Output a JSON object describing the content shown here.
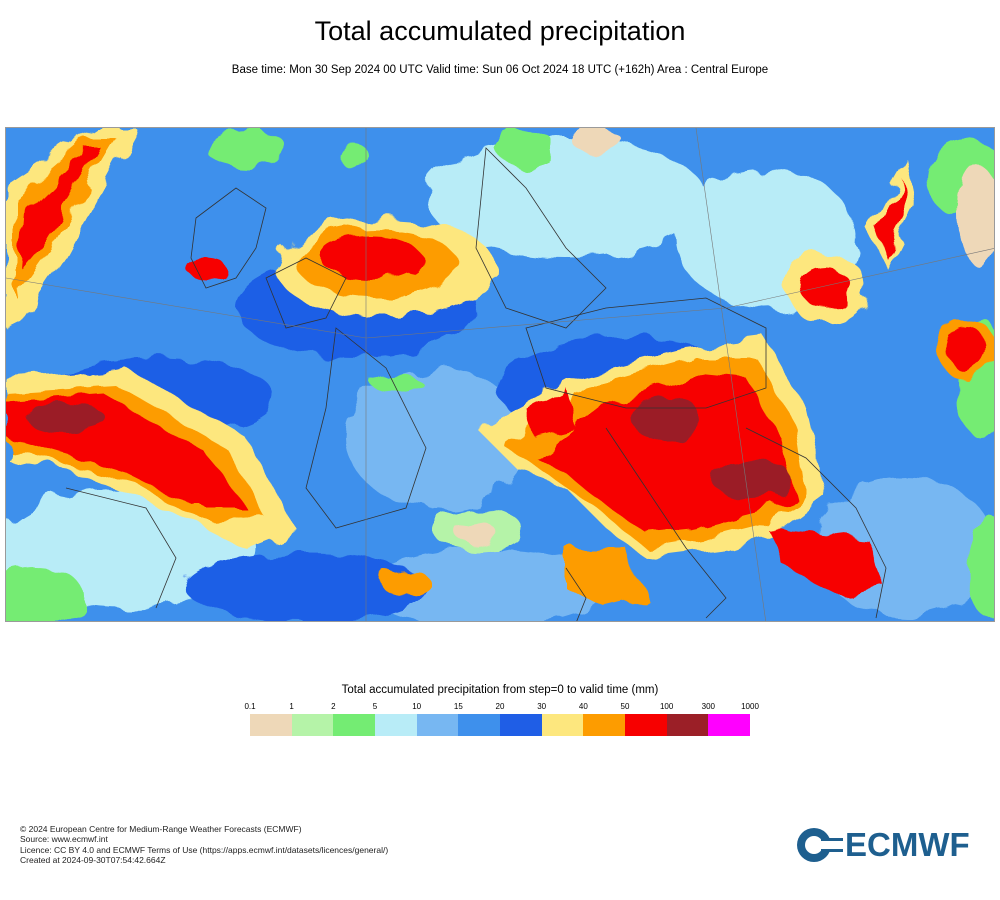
{
  "title": "Total accumulated precipitation",
  "subtitle": "Base time: Mon 30 Sep 2024 00 UTC Valid time: Sun 06 Oct 2024 18 UTC (+162h) Area : Central Europe",
  "legend": {
    "title": "Total accumulated precipitation from step=0 to valid time (mm)",
    "ticks": [
      "0.1",
      "1",
      "2",
      "5",
      "10",
      "15",
      "20",
      "30",
      "40",
      "50",
      "100",
      "300",
      "1000"
    ],
    "colors": [
      "#eed8b8",
      "#b5f3a8",
      "#74ec73",
      "#b8ecf7",
      "#77b7f2",
      "#3e90ec",
      "#1f5ee6",
      "#fde77e",
      "#fd9c00",
      "#f70000",
      "#9b1f27",
      "#ff00ff"
    ]
  },
  "footer": {
    "copyright": "© 2024 European Centre for Medium-Range Weather Forecasts (ECMWF)",
    "source": "Source: www.ecmwf.int",
    "licence": "Licence: CC BY 4.0 and ECMWF Terms of Use (https://apps.ecmwf.int/datasets/licences/general/)",
    "created": "Created at 2024-09-30T07:54:42.664Z"
  },
  "logo": {
    "text": "ECMWF",
    "color": "#1e5f8f"
  }
}
